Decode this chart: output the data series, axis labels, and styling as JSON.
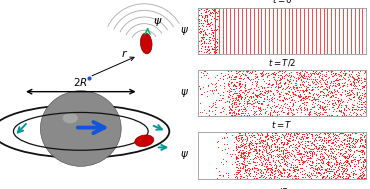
{
  "red": "#ff0000",
  "teal": "#009999",
  "blue_arrow": "#1155dd",
  "sphere_color": "#8a8a8a",
  "sphere_edge": "#444444",
  "ring_color": "#111111",
  "arc_color": "#b0b0b0",
  "swimmer_face": "#cc0000",
  "swimmer_edge": "#880000",
  "fig_width": 3.7,
  "fig_height": 1.89,
  "dpi": 100,
  "n_stripes": 40,
  "stripe_lw": 0.55,
  "dot_s": 0.7,
  "label_fs": 6.2,
  "psi_fs": 7.5
}
